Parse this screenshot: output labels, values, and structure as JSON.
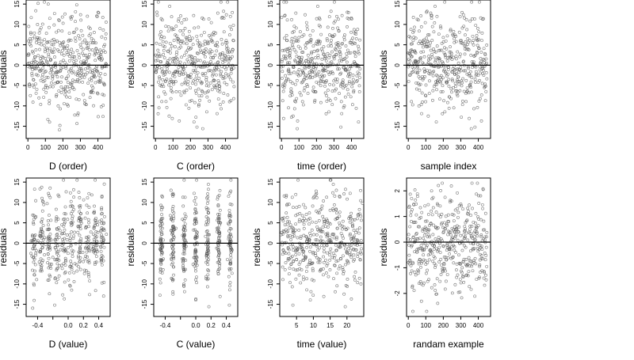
{
  "chart_data": [
    {
      "type": "scatter",
      "ylabel": "residuals",
      "xlabel": "D (order)",
      "xlim": [
        -10,
        470
      ],
      "ylim": [
        -18,
        16
      ],
      "xticks": [
        0,
        100,
        200,
        300,
        400
      ],
      "xtick_labels": [
        "0",
        "100",
        "200",
        "300",
        "400"
      ],
      "yticks": [
        -15,
        -10,
        -5,
        0,
        5,
        10,
        15
      ],
      "ytick_labels": [
        "-15",
        "-10",
        "-5",
        "0",
        "5",
        "10",
        "15"
      ],
      "hline": 0,
      "n_points": 450,
      "points_description": ""
    },
    {
      "type": "scatter",
      "ylabel": "residuals",
      "xlabel": "C (order)",
      "xlim": [
        -10,
        470
      ],
      "ylim": [
        -18,
        16
      ],
      "xticks": [
        0,
        100,
        200,
        300,
        400
      ],
      "xtick_labels": [
        "0",
        "100",
        "200",
        "300",
        "400"
      ],
      "yticks": [
        -15,
        -10,
        -5,
        0,
        5,
        10,
        15
      ],
      "ytick_labels": [
        "-15",
        "-10",
        "-5",
        "0",
        "5",
        "10",
        "15"
      ],
      "hline": 0,
      "n_points": 450,
      "points_description": ""
    },
    {
      "type": "scatter",
      "ylabel": "residuals",
      "xlabel": "time (order)",
      "xlim": [
        -10,
        470
      ],
      "ylim": [
        -18,
        16
      ],
      "xticks": [
        0,
        100,
        200,
        300,
        400
      ],
      "xtick_labels": [
        "0",
        "100",
        "200",
        "300",
        "400"
      ],
      "yticks": [
        -15,
        -10,
        -5,
        0,
        5,
        10,
        15
      ],
      "ytick_labels": [
        "-15",
        "-10",
        "-5",
        "0",
        "5",
        "10",
        "15"
      ],
      "hline": 0,
      "n_points": 450,
      "points_description": ""
    },
    {
      "type": "scatter",
      "ylabel": "residuals",
      "xlabel": "sample index",
      "xlim": [
        -10,
        470
      ],
      "ylim": [
        -18,
        16
      ],
      "xticks": [
        0,
        100,
        200,
        300,
        400
      ],
      "xtick_labels": [
        "0",
        "100",
        "200",
        "300",
        "400"
      ],
      "yticks": [
        -15,
        -10,
        -5,
        0,
        5,
        10,
        15
      ],
      "ytick_labels": [
        "-15",
        "-10",
        "-5",
        "0",
        "5",
        "10",
        "15"
      ],
      "hline": 0,
      "n_points": 450,
      "points_description": ""
    },
    {
      "type": "scatter",
      "ylabel": "residuals",
      "xlabel": "D (value)",
      "xlim": [
        -0.55,
        0.55
      ],
      "ylim": [
        -18,
        16
      ],
      "xticks": [
        -0.4,
        -0.2,
        0,
        0.2,
        0.4
      ],
      "xtick_labels": [
        "-0.4",
        "0.0",
        "0.2",
        "0.4"
      ],
      "xtick_label_values": [
        -0.4,
        0.0,
        0.2,
        0.4
      ],
      "yticks": [
        -15,
        -10,
        -5,
        0,
        5,
        10,
        15
      ],
      "ytick_labels": [
        "-15",
        "-10",
        "-5",
        "0",
        "5",
        "10",
        "15"
      ],
      "hline": 0,
      "n_points": 450,
      "points_description": ""
    },
    {
      "type": "scatter",
      "ylabel": "residuals",
      "xlabel": "C (value)",
      "xlim": [
        -0.55,
        0.55
      ],
      "ylim": [
        -18,
        16
      ],
      "xticks": [
        -0.4,
        -0.2,
        0,
        0.2,
        0.4
      ],
      "xtick_labels": [
        "-0.4",
        "0.0",
        "0.2",
        "0.4"
      ],
      "xtick_label_values": [
        -0.4,
        0.0,
        0.2,
        0.4
      ],
      "yticks": [
        -15,
        -10,
        -5,
        0,
        5,
        10,
        15
      ],
      "ytick_labels": [
        "-15",
        "-10",
        "-5",
        "0",
        "5",
        "10",
        "15"
      ],
      "hline": 0,
      "n_points": 450,
      "points_description": ""
    },
    {
      "type": "scatter",
      "ylabel": "residuals",
      "xlabel": "time (value)",
      "xlim": [
        0,
        25
      ],
      "ylim": [
        -18,
        16
      ],
      "xticks": [
        5,
        10,
        15,
        20
      ],
      "xtick_labels": [
        "5",
        "10",
        "15",
        "20"
      ],
      "yticks": [
        -15,
        -10,
        -5,
        0,
        5,
        10,
        15
      ],
      "ytick_labels": [
        "-15",
        "-10",
        "-5",
        "0",
        "5",
        "10",
        "15"
      ],
      "hline": 0,
      "n_points": 450,
      "points_description": ""
    },
    {
      "type": "scatter",
      "ylabel": "residuals",
      "xlabel": "randam example",
      "xlim": [
        -10,
        470
      ],
      "ylim": [
        -2.9,
        2.5
      ],
      "xticks": [
        0,
        100,
        200,
        300,
        400
      ],
      "xtick_labels": [
        "0",
        "100",
        "200",
        "300",
        "400"
      ],
      "yticks": [
        -2,
        -1,
        0,
        1,
        2
      ],
      "ytick_labels": [
        "-2",
        "-1",
        "0",
        "1",
        "2"
      ],
      "hline": 0,
      "n_points": 450,
      "points_description": ""
    }
  ],
  "style": {
    "point_color": "#555555",
    "axis_color": "#000000",
    "line_color": "#000000"
  }
}
